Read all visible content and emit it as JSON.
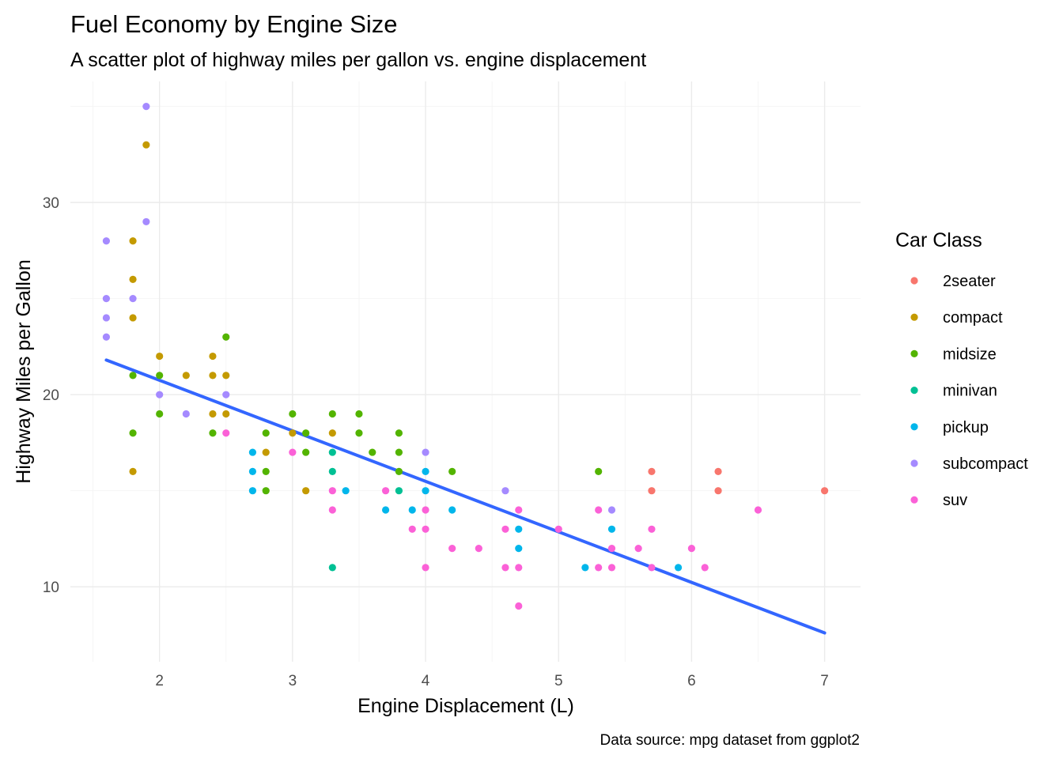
{
  "chart_data": {
    "type": "scatter",
    "title": "Fuel Economy by Engine Size",
    "subtitle": "A scatter plot of highway miles per gallon vs. engine displacement",
    "xlabel": "Engine Displacement (L)",
    "ylabel": "Highway Miles per Gallon",
    "caption": "Data source: mpg dataset from ggplot2",
    "xlim": [
      1.33,
      7.27
    ],
    "ylim": [
      6.1,
      36.3
    ],
    "x_ticks": [
      2,
      3,
      4,
      5,
      6,
      7
    ],
    "y_ticks": [
      10,
      20,
      30
    ],
    "grid": true,
    "legend": {
      "title": "Car Class",
      "placement": "right"
    },
    "series": [
      {
        "name": "2seater",
        "color": "#F8766D",
        "points": [
          [
            5.7,
            16
          ],
          [
            5.7,
            15
          ],
          [
            6.2,
            16
          ],
          [
            6.2,
            15
          ],
          [
            7.0,
            15
          ]
        ]
      },
      {
        "name": "compact",
        "color": "#C49A00",
        "points": [
          [
            1.8,
            28
          ],
          [
            1.8,
            26
          ],
          [
            1.8,
            24
          ],
          [
            1.8,
            16
          ],
          [
            1.9,
            33
          ],
          [
            2.0,
            22
          ],
          [
            2.2,
            21
          ],
          [
            2.4,
            22
          ],
          [
            2.4,
            21
          ],
          [
            2.4,
            19
          ],
          [
            2.5,
            21
          ],
          [
            2.5,
            19
          ],
          [
            2.8,
            17
          ],
          [
            3.0,
            18
          ],
          [
            3.1,
            15
          ],
          [
            3.3,
            18
          ]
        ]
      },
      {
        "name": "midsize",
        "color": "#53B400",
        "points": [
          [
            1.8,
            21
          ],
          [
            1.8,
            18
          ],
          [
            2.0,
            21
          ],
          [
            2.0,
            19
          ],
          [
            2.4,
            18
          ],
          [
            2.5,
            23
          ],
          [
            2.8,
            18
          ],
          [
            2.8,
            16
          ],
          [
            2.8,
            15
          ],
          [
            3.0,
            19
          ],
          [
            3.1,
            18
          ],
          [
            3.1,
            17
          ],
          [
            3.3,
            19
          ],
          [
            3.5,
            19
          ],
          [
            3.5,
            18
          ],
          [
            3.6,
            17
          ],
          [
            3.8,
            18
          ],
          [
            3.8,
            17
          ],
          [
            3.8,
            16
          ],
          [
            4.2,
            16
          ],
          [
            5.3,
            16
          ]
        ]
      },
      {
        "name": "minivan",
        "color": "#00C094",
        "points": [
          [
            3.3,
            17
          ],
          [
            3.3,
            16
          ],
          [
            3.3,
            11
          ],
          [
            3.8,
            15
          ]
        ]
      },
      {
        "name": "pickup",
        "color": "#00B6EB",
        "points": [
          [
            2.7,
            17
          ],
          [
            2.7,
            16
          ],
          [
            2.7,
            15
          ],
          [
            3.4,
            15
          ],
          [
            3.7,
            14
          ],
          [
            3.9,
            14
          ],
          [
            4.0,
            16
          ],
          [
            4.0,
            15
          ],
          [
            4.2,
            14
          ],
          [
            4.7,
            13
          ],
          [
            4.7,
            12
          ],
          [
            5.2,
            11
          ],
          [
            5.4,
            13
          ],
          [
            5.9,
            11
          ]
        ]
      },
      {
        "name": "subcompact",
        "color": "#A58AFF",
        "points": [
          [
            1.6,
            28
          ],
          [
            1.6,
            25
          ],
          [
            1.6,
            24
          ],
          [
            1.6,
            23
          ],
          [
            1.8,
            25
          ],
          [
            1.9,
            35
          ],
          [
            1.9,
            29
          ],
          [
            2.0,
            20
          ],
          [
            2.2,
            19
          ],
          [
            2.5,
            20
          ],
          [
            4.0,
            17
          ],
          [
            4.6,
            15
          ],
          [
            5.4,
            14
          ]
        ]
      },
      {
        "name": "suv",
        "color": "#FB61D7",
        "points": [
          [
            2.5,
            18
          ],
          [
            3.0,
            17
          ],
          [
            3.3,
            15
          ],
          [
            3.3,
            14
          ],
          [
            3.7,
            15
          ],
          [
            3.9,
            13
          ],
          [
            4.0,
            14
          ],
          [
            4.0,
            13
          ],
          [
            4.0,
            11
          ],
          [
            4.2,
            12
          ],
          [
            4.4,
            12
          ],
          [
            4.6,
            13
          ],
          [
            4.6,
            11
          ],
          [
            4.7,
            14
          ],
          [
            4.7,
            11
          ],
          [
            4.7,
            9
          ],
          [
            5.0,
            13
          ],
          [
            5.3,
            14
          ],
          [
            5.3,
            11
          ],
          [
            5.4,
            12
          ],
          [
            5.4,
            11
          ],
          [
            5.6,
            12
          ],
          [
            5.7,
            13
          ],
          [
            5.7,
            11
          ],
          [
            6.0,
            12
          ],
          [
            6.1,
            11
          ],
          [
            6.5,
            14
          ]
        ]
      }
    ],
    "trend_line": {
      "type": "linear fit",
      "color": "#3366FF",
      "x": [
        1.6,
        7.0
      ],
      "y": [
        21.8,
        7.6
      ]
    }
  }
}
